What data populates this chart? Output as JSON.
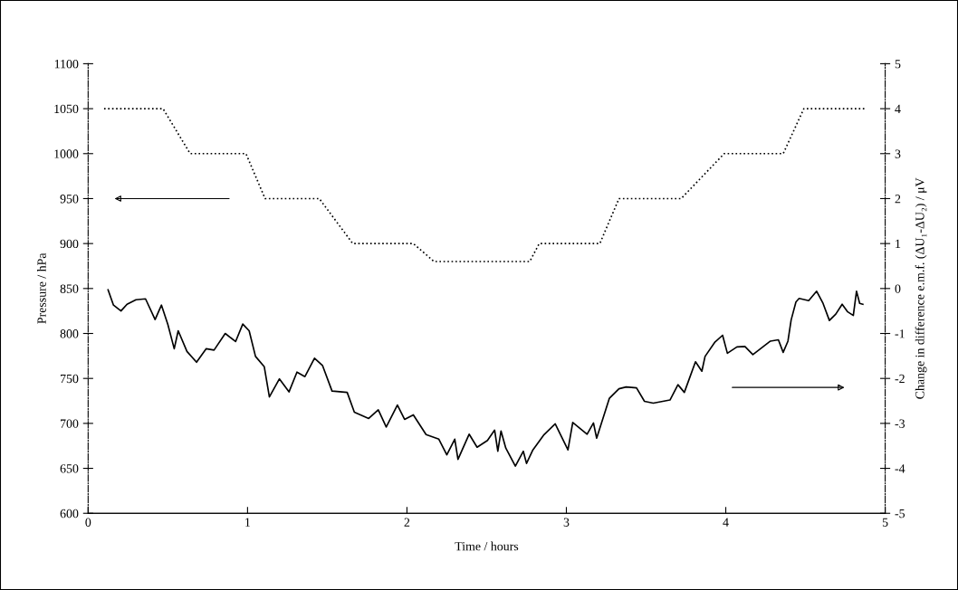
{
  "chart_data": {
    "type": "line",
    "xlabel": "Time / hours",
    "ylabel": "Pressure / hPa",
    "y2label": "Change in difference e.m.f. (ΔU₁-ΔU₂) / μV",
    "xlim": [
      0,
      5
    ],
    "xticks": [
      0,
      1,
      2,
      3,
      4,
      5
    ],
    "ylim": [
      600,
      1100
    ],
    "yticks": [
      600,
      650,
      700,
      750,
      800,
      850,
      900,
      950,
      1000,
      1050,
      1100
    ],
    "y2lim": [
      -5,
      5
    ],
    "y2ticks": [
      -5,
      -4,
      -3,
      -2,
      -1,
      0,
      1,
      2,
      3,
      4,
      5
    ],
    "grid": false,
    "legend": false,
    "marker": "none",
    "series": [
      {
        "color": "#000000",
        "line_style": "dotted",
        "x": [
          0.1,
          0.47,
          0.64,
          0.99,
          1.11,
          1.45,
          1.66,
          2.04,
          2.17,
          2.77,
          2.83,
          3.21,
          3.33,
          3.72,
          3.99,
          4.36,
          4.49,
          4.88
        ],
        "values": [
          1050,
          1050,
          1000,
          1000,
          950,
          950,
          900,
          900,
          880,
          880,
          900,
          900,
          950,
          950,
          1000,
          1000,
          1050,
          1050
        ]
      },
      {
        "color": "#000000",
        "line_style": "solid",
        "axis": "y2",
        "x": [
          0.125,
          0.159,
          0.206,
          0.244,
          0.3,
          0.36,
          0.42,
          0.46,
          0.5,
          0.54,
          0.565,
          0.62,
          0.68,
          0.74,
          0.79,
          0.86,
          0.925,
          0.97,
          1.01,
          1.05,
          1.105,
          1.137,
          1.2,
          1.26,
          1.31,
          1.36,
          1.42,
          1.47,
          1.53,
          1.625,
          1.67,
          1.76,
          1.82,
          1.87,
          1.94,
          1.985,
          2.04,
          2.12,
          2.2,
          2.25,
          2.3,
          2.32,
          2.39,
          2.44,
          2.505,
          2.55,
          2.57,
          2.59,
          2.62,
          2.68,
          2.73,
          2.75,
          2.79,
          2.86,
          2.93,
          3.01,
          3.04,
          3.13,
          3.17,
          3.19,
          3.27,
          3.33,
          3.375,
          3.44,
          3.49,
          3.545,
          3.65,
          3.7,
          3.74,
          3.81,
          3.85,
          3.87,
          3.93,
          3.98,
          4.01,
          4.07,
          4.12,
          4.17,
          4.28,
          4.33,
          4.36,
          4.39,
          4.41,
          4.44,
          4.46,
          4.52,
          4.57,
          4.61,
          4.65,
          4.69,
          4.73,
          4.765,
          4.8,
          4.82,
          4.84,
          4.86
        ],
        "values": [
          -0.03,
          -0.37,
          -0.5,
          -0.35,
          -0.25,
          -0.23,
          -0.69,
          -0.37,
          -0.8,
          -1.34,
          -0.94,
          -1.4,
          -1.64,
          -1.34,
          -1.37,
          -1.0,
          -1.18,
          -0.79,
          -0.94,
          -1.51,
          -1.74,
          -2.41,
          -2.01,
          -2.3,
          -1.86,
          -1.96,
          -1.55,
          -1.71,
          -2.28,
          -2.31,
          -2.75,
          -2.89,
          -2.7,
          -3.08,
          -2.59,
          -2.91,
          -2.81,
          -3.25,
          -3.35,
          -3.7,
          -3.35,
          -3.8,
          -3.24,
          -3.53,
          -3.38,
          -3.15,
          -3.62,
          -3.17,
          -3.55,
          -3.95,
          -3.62,
          -3.89,
          -3.59,
          -3.25,
          -3.01,
          -3.59,
          -2.98,
          -3.24,
          -2.99,
          -3.33,
          -2.44,
          -2.23,
          -2.19,
          -2.21,
          -2.51,
          -2.55,
          -2.48,
          -2.14,
          -2.31,
          -1.63,
          -1.84,
          -1.51,
          -1.2,
          -1.04,
          -1.44,
          -1.3,
          -1.29,
          -1.47,
          -1.17,
          -1.14,
          -1.42,
          -1.17,
          -0.7,
          -0.3,
          -0.22,
          -0.27,
          -0.06,
          -0.33,
          -0.71,
          -0.57,
          -0.35,
          -0.52,
          -0.6,
          -0.06,
          -0.33,
          -0.35
        ]
      }
    ]
  }
}
